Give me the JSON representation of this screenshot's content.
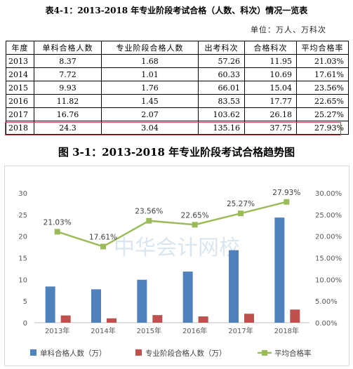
{
  "table": {
    "title": "表4-1：2013-2018 年专业阶段考试合格（人数、科次）情况一览表",
    "unit": "单位：万人、万科次",
    "headers": [
      "年度",
      "单科合格人数",
      "专业阶段合格人数",
      "出考科次",
      "合格科次",
      "平均合格率"
    ],
    "rows": [
      [
        "2013",
        "8.37",
        "1.68",
        "57.26",
        "11.95",
        "21.03%"
      ],
      [
        "2014",
        "7.72",
        "1.01",
        "60.33",
        "10.69",
        "17.61%"
      ],
      [
        "2015",
        "9.93",
        "1.76",
        "66.01",
        "15.04",
        "23.56%"
      ],
      [
        "2016",
        "11.82",
        "1.45",
        "83.53",
        "17.77",
        "22.65%"
      ],
      [
        "2017",
        "16.76",
        "2.07",
        "103.62",
        "26.18",
        "25.27%"
      ],
      [
        "2018",
        "24.3",
        "3.04",
        "135.16",
        "37.75",
        "27.93%"
      ]
    ]
  },
  "figure_title": "图 3-1：2013-2018 年专业阶段考试合格趋势图",
  "watermark": "中华会计网校",
  "colors": {
    "bar1": "#4f81bd",
    "bar2": "#c0504d",
    "line": "#9bbb59",
    "highlight": "#c0504d"
  },
  "chart_data": {
    "type": "bar",
    "categories": [
      "2013年",
      "2014年",
      "2015年",
      "2016年",
      "2017年",
      "2018年"
    ],
    "series": [
      {
        "name": "单科合格人数（万）",
        "type": "bar",
        "axis": "left",
        "values": [
          8.37,
          7.72,
          9.93,
          11.82,
          16.76,
          24.3
        ]
      },
      {
        "name": "专业阶段合格人数（万）",
        "type": "bar",
        "axis": "left",
        "values": [
          1.68,
          1.01,
          1.76,
          1.45,
          2.07,
          3.04
        ]
      },
      {
        "name": "平均合格率",
        "type": "line",
        "axis": "right",
        "values": [
          21.03,
          17.61,
          23.56,
          22.65,
          25.27,
          27.93
        ],
        "labels": [
          "21.03%",
          "17.61%",
          "23.56%",
          "22.65%",
          "25.27%",
          "27.93%"
        ]
      }
    ],
    "left_axis": {
      "ylim": [
        0,
        30
      ],
      "ticks": [
        "0",
        "5",
        "10",
        "15",
        "20",
        "25",
        "30"
      ]
    },
    "right_axis": {
      "ylim": [
        0,
        30
      ],
      "ticks": [
        "0.00%",
        "5.00%",
        "10.00%",
        "15.00%",
        "20.00%",
        "25.00%",
        "30.00%"
      ]
    },
    "grid": false,
    "legend": "bottom"
  }
}
